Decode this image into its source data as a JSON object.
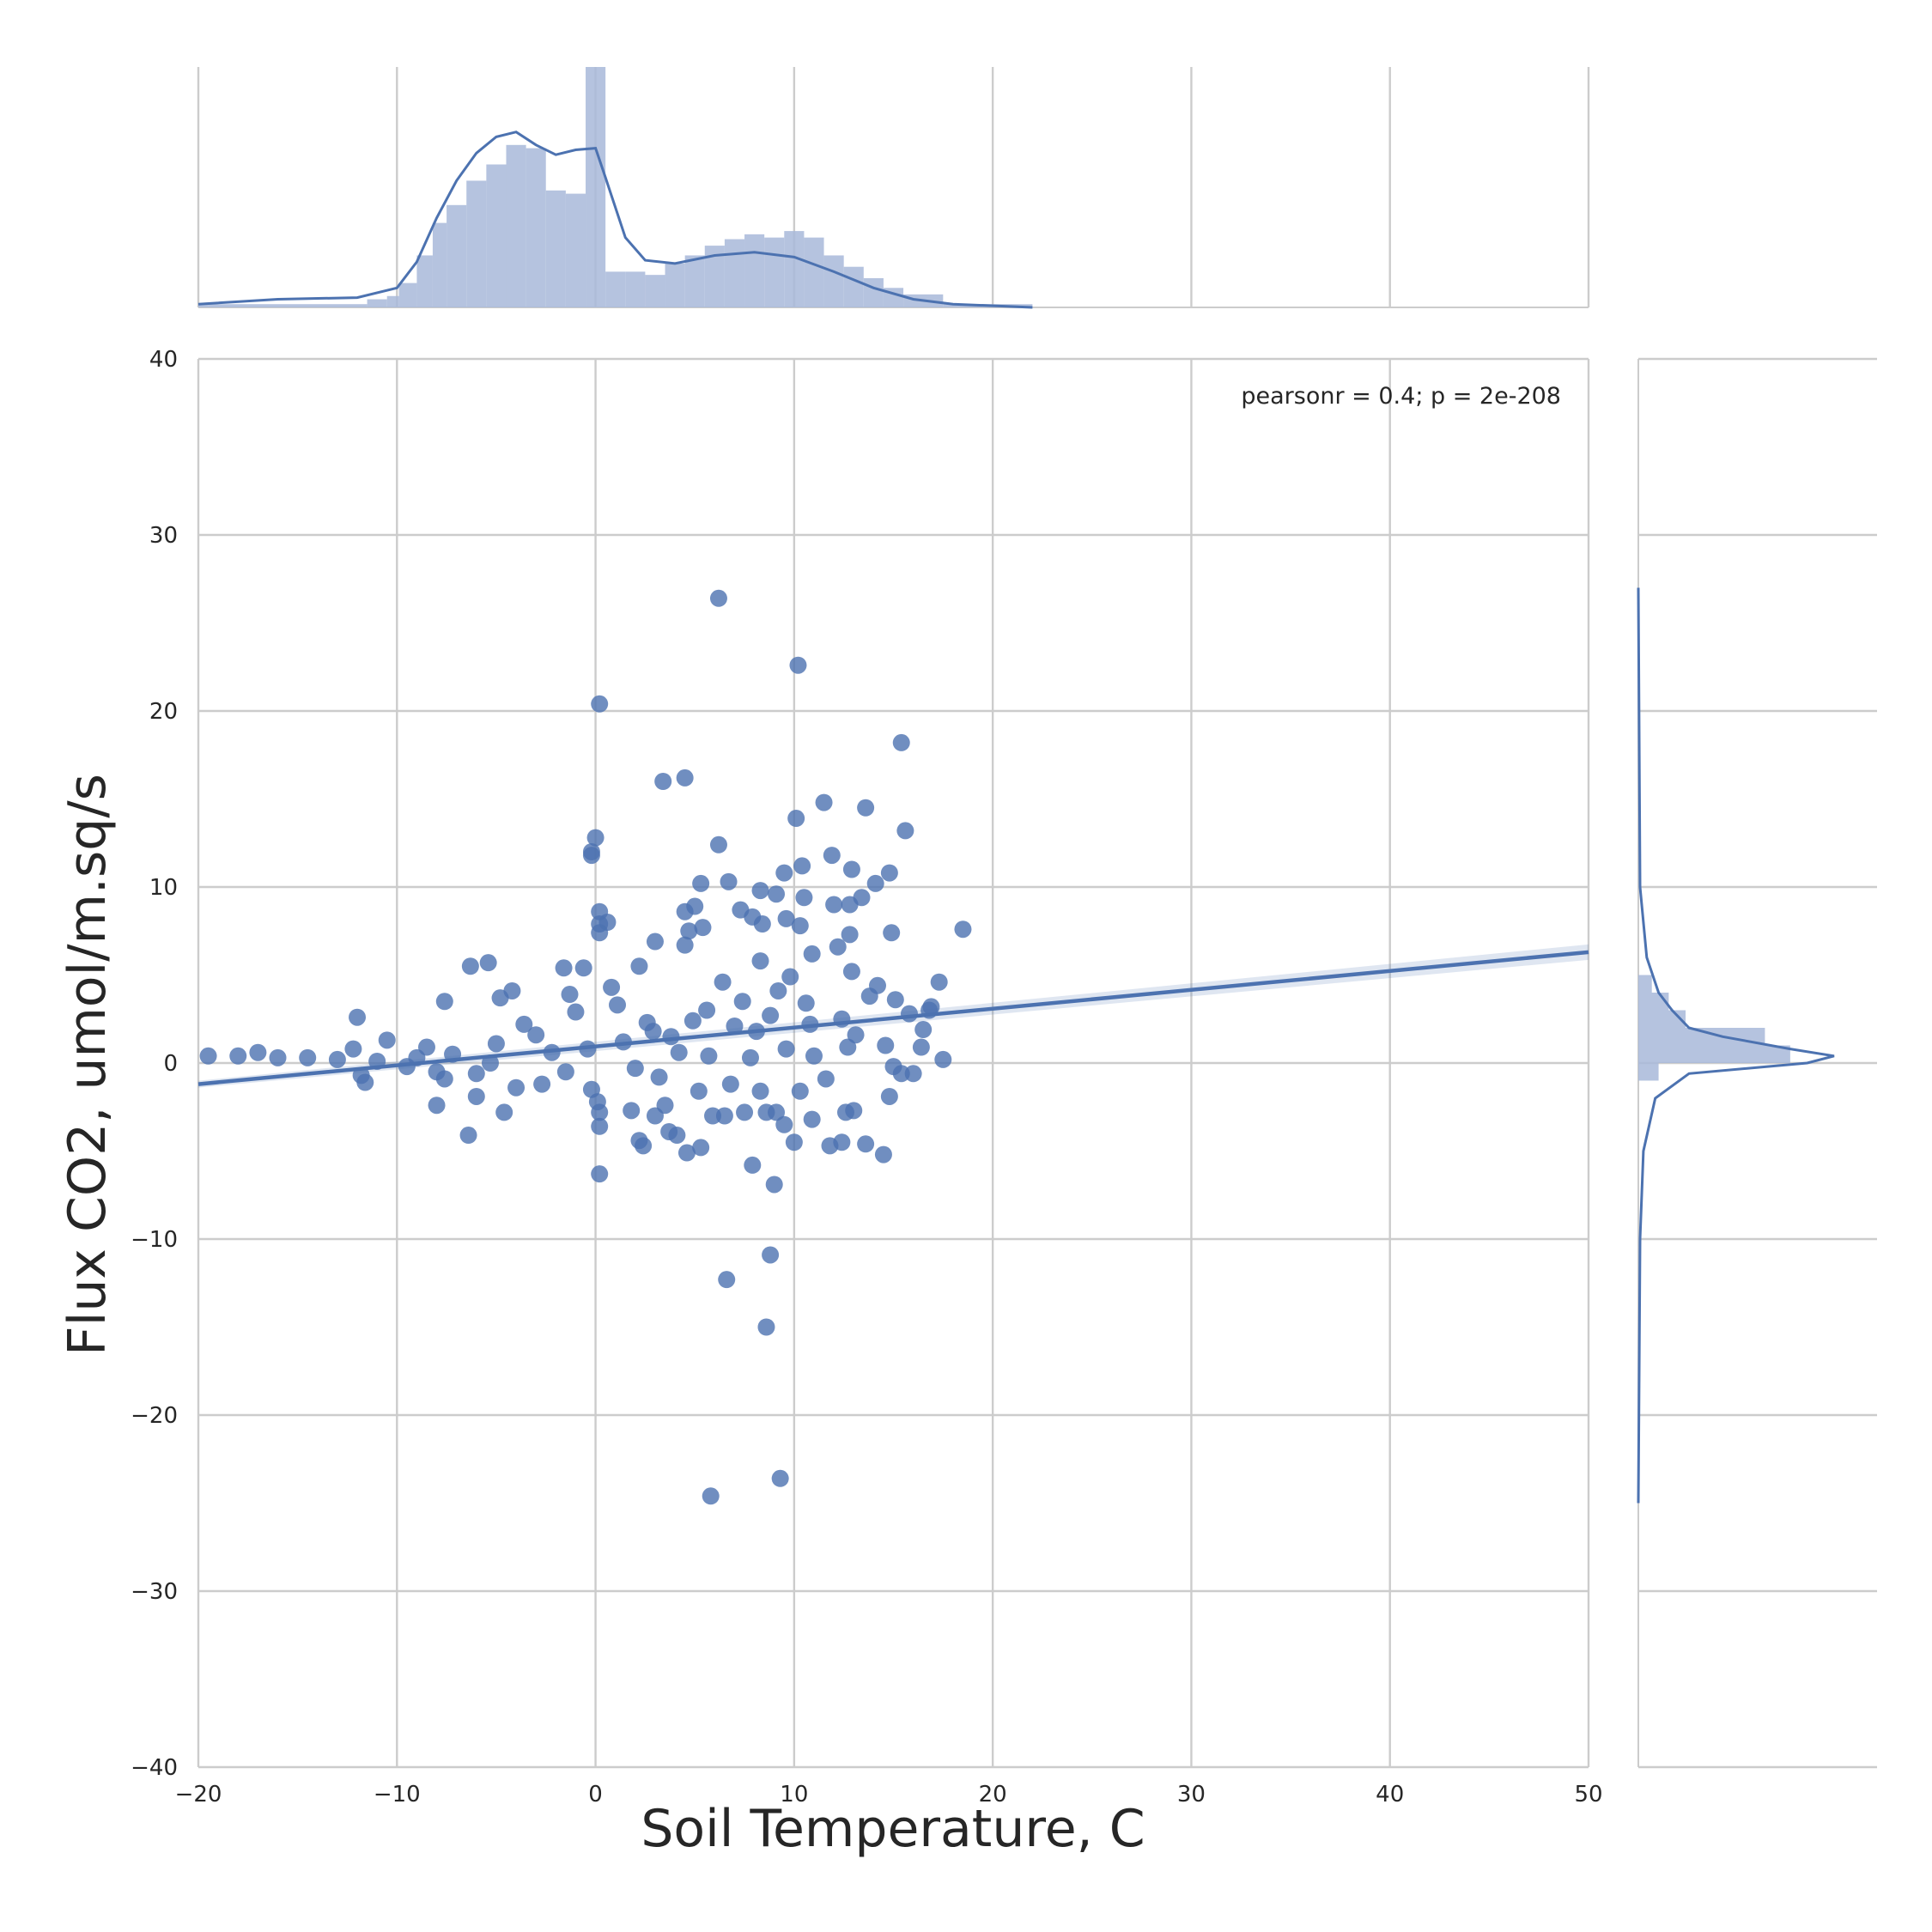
{
  "chart_data": {
    "type": "scatter",
    "xlabel": "Soil Temperature, C",
    "ylabel": "Flux CO2, umol/m.sq/s",
    "xlim": [
      -20,
      50
    ],
    "ylim": [
      -40,
      40
    ],
    "x_ticks": [
      -20,
      -10,
      0,
      10,
      20,
      30,
      40,
      50
    ],
    "y_ticks": [
      -40,
      -30,
      -20,
      -10,
      0,
      10,
      20,
      30,
      40
    ],
    "x_tick_labels": [
      "−20",
      "−10",
      "0",
      "10",
      "20",
      "30",
      "40",
      "50"
    ],
    "y_tick_labels": [
      "−40",
      "−30",
      "−20",
      "−10",
      "0",
      "10",
      "20",
      "30",
      "40"
    ],
    "annotation": "pearsonr = 0.4; p = 2e-208",
    "grid": true,
    "colors": {
      "points": "#4c72b0",
      "hist": "#a8b9d9",
      "line": "#4c72b0",
      "grid": "#cccccc"
    },
    "regression": {
      "x": [
        -20,
        50
      ],
      "y": [
        -1.2,
        6.3
      ]
    },
    "points": [
      [
        6.2,
        26.4
      ],
      [
        10.2,
        22.6
      ],
      [
        0.2,
        20.4
      ],
      [
        15.4,
        18.2
      ],
      [
        3.4,
        16.0
      ],
      [
        4.5,
        16.2
      ],
      [
        11.5,
        14.8
      ],
      [
        13.6,
        14.5
      ],
      [
        10.1,
        13.9
      ],
      [
        15.6,
        13.2
      ],
      [
        0.0,
        12.8
      ],
      [
        6.2,
        12.4
      ],
      [
        -0.2,
        12.0
      ],
      [
        -0.2,
        11.8
      ],
      [
        11.9,
        11.8
      ],
      [
        10.4,
        11.2
      ],
      [
        9.5,
        10.8
      ],
      [
        12.9,
        11.0
      ],
      [
        14.8,
        10.8
      ],
      [
        5.3,
        10.2
      ],
      [
        6.7,
        10.3
      ],
      [
        8.3,
        9.8
      ],
      [
        9.1,
        9.6
      ],
      [
        10.5,
        9.4
      ],
      [
        13.4,
        9.4
      ],
      [
        14.1,
        10.2
      ],
      [
        12.0,
        9.0
      ],
      [
        12.8,
        9.0
      ],
      [
        0.2,
        8.6
      ],
      [
        5.0,
        8.9
      ],
      [
        7.3,
        8.7
      ],
      [
        7.9,
        8.3
      ],
      [
        9.6,
        8.2
      ],
      [
        10.3,
        7.8
      ],
      [
        0.2,
        7.9
      ],
      [
        0.6,
        8.0
      ],
      [
        4.5,
        8.6
      ],
      [
        5.4,
        7.7
      ],
      [
        8.4,
        7.9
      ],
      [
        0.2,
        7.4
      ],
      [
        4.7,
        7.5
      ],
      [
        12.8,
        7.3
      ],
      [
        14.9,
        7.4
      ],
      [
        18.5,
        7.6
      ],
      [
        3.0,
        6.9
      ],
      [
        4.5,
        6.7
      ],
      [
        10.9,
        6.2
      ],
      [
        12.2,
        6.6
      ],
      [
        -5.4,
        5.7
      ],
      [
        -6.3,
        5.5
      ],
      [
        2.2,
        5.5
      ],
      [
        8.3,
        5.8
      ],
      [
        -1.6,
        5.4
      ],
      [
        -0.6,
        5.4
      ],
      [
        17.3,
        4.6
      ],
      [
        -7.6,
        3.5
      ],
      [
        -1.3,
        3.9
      ],
      [
        -4.2,
        4.1
      ],
      [
        -4.8,
        3.7
      ],
      [
        16.9,
        3.2
      ],
      [
        -12.0,
        2.6
      ],
      [
        -10.5,
        1.3
      ],
      [
        -12.2,
        0.8
      ],
      [
        -8.5,
        0.9
      ],
      [
        -5.3,
        0.0
      ],
      [
        -3.0,
        1.6
      ],
      [
        -16.0,
        0.3
      ],
      [
        -14.5,
        0.3
      ],
      [
        -13.0,
        0.2
      ],
      [
        -18.0,
        0.4
      ],
      [
        -19.5,
        0.4
      ],
      [
        -17.0,
        0.6
      ],
      [
        -11.0,
        0.1
      ],
      [
        -9.5,
        -0.2
      ],
      [
        -8.0,
        -0.5
      ],
      [
        -6.0,
        -0.6
      ],
      [
        -7.6,
        -0.9
      ],
      [
        -11.8,
        -0.7
      ],
      [
        -11.6,
        -1.1
      ],
      [
        -8.0,
        -2.4
      ],
      [
        -6.4,
        -4.1
      ],
      [
        -6.0,
        -1.9
      ],
      [
        -4.6,
        -2.8
      ],
      [
        -4.0,
        -1.4
      ],
      [
        -2.7,
        -1.2
      ],
      [
        -1.5,
        -0.5
      ],
      [
        -0.2,
        -1.5
      ],
      [
        0.1,
        -2.2
      ],
      [
        0.2,
        -3.6
      ],
      [
        0.2,
        -6.3
      ],
      [
        0.2,
        -2.8
      ],
      [
        1.8,
        -2.7
      ],
      [
        2.2,
        -4.4
      ],
      [
        2.4,
        -4.7
      ],
      [
        3.0,
        -3.0
      ],
      [
        3.5,
        -2.4
      ],
      [
        3.7,
        -3.9
      ],
      [
        4.1,
        -4.1
      ],
      [
        4.6,
        -5.1
      ],
      [
        5.2,
        -1.6
      ],
      [
        5.3,
        -4.8
      ],
      [
        5.9,
        -3.0
      ],
      [
        6.5,
        -3.0
      ],
      [
        7.5,
        -2.8
      ],
      [
        7.9,
        -5.8
      ],
      [
        8.3,
        -1.6
      ],
      [
        8.6,
        -2.8
      ],
      [
        9.1,
        -2.8
      ],
      [
        9.5,
        -3.5
      ],
      [
        10.0,
        -4.5
      ],
      [
        10.3,
        -1.6
      ],
      [
        10.9,
        -3.2
      ],
      [
        11.8,
        -4.7
      ],
      [
        12.4,
        -4.5
      ],
      [
        12.6,
        -2.8
      ],
      [
        13.0,
        -2.7
      ],
      [
        13.6,
        -4.6
      ],
      [
        14.5,
        -5.2
      ],
      [
        14.8,
        -1.9
      ],
      [
        15.4,
        -0.6
      ],
      [
        16.0,
        -0.6
      ],
      [
        17.5,
        0.2
      ],
      [
        16.4,
        0.9
      ],
      [
        15.0,
        -0.2
      ],
      [
        9.0,
        -6.9
      ],
      [
        8.8,
        -10.9
      ],
      [
        6.6,
        -12.3
      ],
      [
        8.6,
        -15.0
      ],
      [
        9.3,
        -23.6
      ],
      [
        5.8,
        -24.6
      ],
      [
        1.4,
        1.2
      ],
      [
        2.6,
        2.3
      ],
      [
        3.8,
        1.5
      ],
      [
        5.6,
        3.0
      ],
      [
        7.0,
        2.1
      ],
      [
        8.8,
        2.7
      ],
      [
        10.6,
        3.4
      ],
      [
        12.4,
        2.5
      ],
      [
        13.8,
        3.8
      ],
      [
        15.8,
        2.8
      ],
      [
        14.6,
        1.0
      ],
      [
        11.0,
        0.4
      ],
      [
        9.6,
        0.8
      ],
      [
        7.8,
        0.3
      ],
      [
        4.2,
        0.6
      ],
      [
        2.0,
        -0.3
      ],
      [
        -2.2,
        0.6
      ],
      [
        -3.6,
        2.2
      ],
      [
        -1.0,
        2.9
      ],
      [
        0.8,
        4.3
      ],
      [
        6.4,
        4.6
      ],
      [
        9.8,
        4.9
      ],
      [
        12.9,
        5.2
      ],
      [
        14.2,
        4.4
      ],
      [
        3.2,
        -0.8
      ],
      [
        6.8,
        -1.2
      ],
      [
        11.6,
        -0.9
      ],
      [
        13.1,
        1.6
      ],
      [
        16.5,
        1.9
      ],
      [
        1.1,
        3.3
      ],
      [
        -0.4,
        0.8
      ],
      [
        -9.0,
        0.3
      ],
      [
        -7.2,
        0.5
      ],
      [
        -5.0,
        1.1
      ],
      [
        4.9,
        2.4
      ],
      [
        8.1,
        1.8
      ],
      [
        10.8,
        2.2
      ],
      [
        12.7,
        0.9
      ],
      [
        15.1,
        3.6
      ],
      [
        16.8,
        3.0
      ],
      [
        2.9,
        1.8
      ],
      [
        5.7,
        0.4
      ],
      [
        7.4,
        3.5
      ],
      [
        9.2,
        4.1
      ]
    ],
    "x_hist": {
      "bin_edges": [
        -20,
        -19.5,
        -11.5,
        -10.5,
        -9.9,
        -9.0,
        -8.2,
        -7.5,
        -6.5,
        -5.5,
        -4.5,
        -3.5,
        -2.5,
        -1.5,
        -0.5,
        0.5,
        1.5,
        2.5,
        3.5,
        4.5,
        5.5,
        6.5,
        7.5,
        8.5,
        9.5,
        10.5,
        11.5,
        12.5,
        13.5,
        14.5,
        15.5,
        17.5,
        22
      ],
      "counts": [
        0.02,
        0.02,
        0.05,
        0.07,
        0.15,
        0.32,
        0.52,
        0.63,
        0.78,
        0.88,
        1.0,
        0.98,
        0.72,
        0.7,
        1.48,
        0.22,
        0.22,
        0.2,
        0.27,
        0.32,
        0.38,
        0.42,
        0.45,
        0.43,
        0.47,
        0.43,
        0.32,
        0.25,
        0.18,
        0.12,
        0.08,
        0.02
      ],
      "kde": [
        [
          -20,
          0.02
        ],
        [
          -16,
          0.05
        ],
        [
          -12,
          0.06
        ],
        [
          -10,
          0.12
        ],
        [
          -9,
          0.28
        ],
        [
          -8,
          0.55
        ],
        [
          -7,
          0.78
        ],
        [
          -6,
          0.95
        ],
        [
          -5,
          1.05
        ],
        [
          -4,
          1.08
        ],
        [
          -3,
          1.0
        ],
        [
          -2,
          0.94
        ],
        [
          -1,
          0.97
        ],
        [
          0,
          0.98
        ],
        [
          0.5,
          0.8
        ],
        [
          1.5,
          0.43
        ],
        [
          2.5,
          0.29
        ],
        [
          4,
          0.27
        ],
        [
          6,
          0.32
        ],
        [
          8,
          0.34
        ],
        [
          10,
          0.31
        ],
        [
          12,
          0.22
        ],
        [
          14,
          0.12
        ],
        [
          16,
          0.05
        ],
        [
          18,
          0.02
        ],
        [
          22,
          0.0
        ]
      ]
    },
    "y_hist": {
      "bin_edges": [
        -1,
        0,
        1,
        2,
        3,
        4,
        5
      ],
      "counts": [
        0.12,
        0.9,
        0.75,
        0.28,
        0.18,
        0.08
      ],
      "kde": [
        [
          -25,
          0.0
        ],
        [
          -10,
          0.01
        ],
        [
          -5,
          0.03
        ],
        [
          -2,
          0.1
        ],
        [
          -0.6,
          0.3
        ],
        [
          0,
          1.0
        ],
        [
          0.4,
          1.16
        ],
        [
          0.8,
          0.9
        ],
        [
          1.5,
          0.5
        ],
        [
          2,
          0.3
        ],
        [
          3,
          0.2
        ],
        [
          4,
          0.12
        ],
        [
          6,
          0.05
        ],
        [
          10,
          0.01
        ],
        [
          27,
          0.0
        ]
      ]
    }
  }
}
